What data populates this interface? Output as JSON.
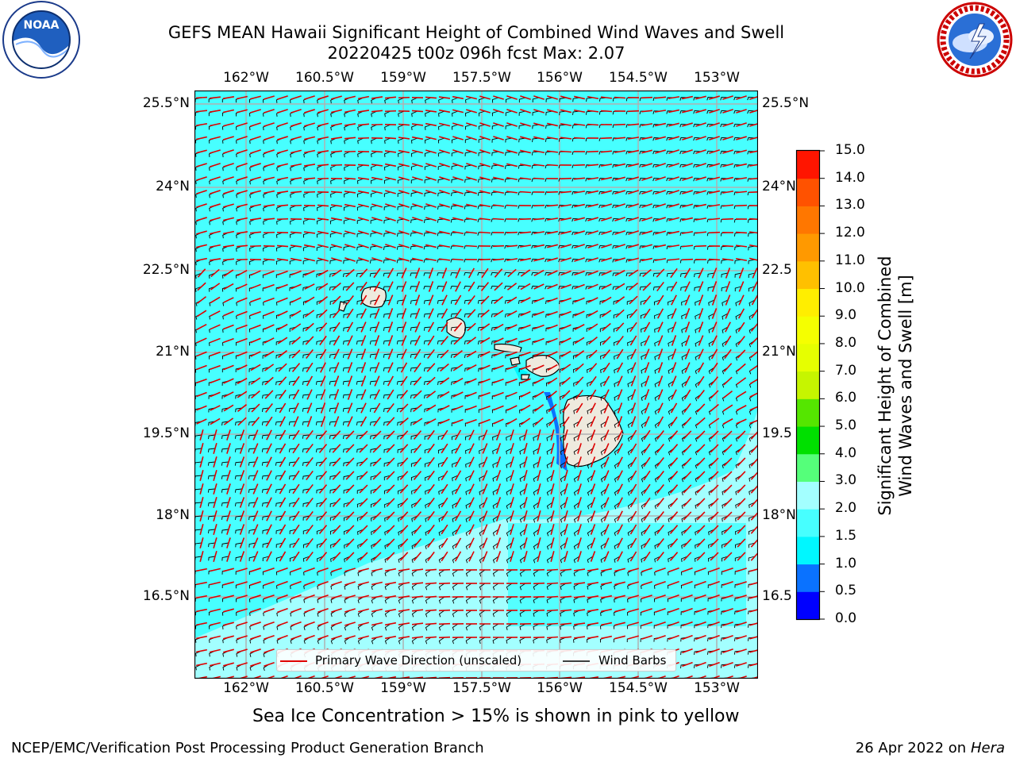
{
  "title": {
    "line1": "GEFS MEAN Hawaii Significant Height of Combined Wind Waves and Swell",
    "line2": "20220425 t00z 096h fcst   Max: 2.07"
  },
  "logos": {
    "left": "NOAA",
    "left_ring": "NATIONAL OCEANIC AND ATMOSPHERIC ADMINISTRATION",
    "left_ring_bottom": "U.S. DEPARTMENT OF COMMERCE",
    "right_ring": "NATIONAL WEATHER SERVICE"
  },
  "axes": {
    "lon_labels": [
      "162°W",
      "160.5°W",
      "159°W",
      "157.5°W",
      "156°W",
      "154.5°W",
      "153°W"
    ],
    "lat_labels": [
      "25.5°N",
      "24°N",
      "22.5°N",
      "21°N",
      "19.5°N",
      "18°N",
      "16.5°N"
    ],
    "right_lat_labels": [
      "25.5°N",
      "24°N",
      "22.5",
      "21°N",
      "19.5",
      "18°N",
      "16.5"
    ]
  },
  "legend": {
    "primary": "Primary Wave Direction (unscaled)",
    "barbs": "Wind Barbs"
  },
  "colorbar": {
    "title_line1": "Significant Height of Combined",
    "title_line2": "Wind Waves and Swell [m]",
    "tick_labels": [
      "15.0",
      "14.0",
      "13.0",
      "12.0",
      "11.0",
      "10.0",
      "9.0",
      "8.0",
      "7.0",
      "6.0",
      "5.0",
      "4.0",
      "3.0",
      "2.0",
      "1.5",
      "1.0",
      "0.5",
      "0.0"
    ],
    "bins": [
      {
        "range": "0.0-0.5",
        "color": "#0000ff"
      },
      {
        "range": "0.5-1.0",
        "color": "#0a72ff"
      },
      {
        "range": "1.0-1.5",
        "color": "#00f7ff"
      },
      {
        "range": "1.5-2.0",
        "color": "#47ffff"
      },
      {
        "range": "2.0-3.0",
        "color": "#a3ffff"
      },
      {
        "range": "3.0-4.0",
        "color": "#55ff7a"
      },
      {
        "range": "4.0-5.0",
        "color": "#00e000"
      },
      {
        "range": "5.0-6.0",
        "color": "#55e600"
      },
      {
        "range": "6.0-7.0",
        "color": "#c6f500"
      },
      {
        "range": "7.0-8.0",
        "color": "#e6ff00"
      },
      {
        "range": "8.0-9.0",
        "color": "#f5ff00"
      },
      {
        "range": "9.0-10.0",
        "color": "#ffee00"
      },
      {
        "range": "10.0-11.0",
        "color": "#ffc000"
      },
      {
        "range": "11.0-12.0",
        "color": "#ff9900"
      },
      {
        "range": "12.0-13.0",
        "color": "#ff7700"
      },
      {
        "range": "13.0-14.0",
        "color": "#ff5200"
      },
      {
        "range": "14.0-15.0",
        "color": "#ff1500"
      }
    ]
  },
  "footer": {
    "ice_note": "Sea Ice Concentration > 15% is shown in pink to yellow",
    "branch": "NCEP/EMC/Verification Post Processing Product Generation Branch",
    "date": "26 Apr 2022 on ",
    "machine": "Hera"
  },
  "colors": {
    "sea": "#47ffff",
    "calm_sea": "#a3ffff",
    "land": "#eeeade",
    "wave_arrow": "#e00000",
    "wind_barb": "#000000"
  }
}
